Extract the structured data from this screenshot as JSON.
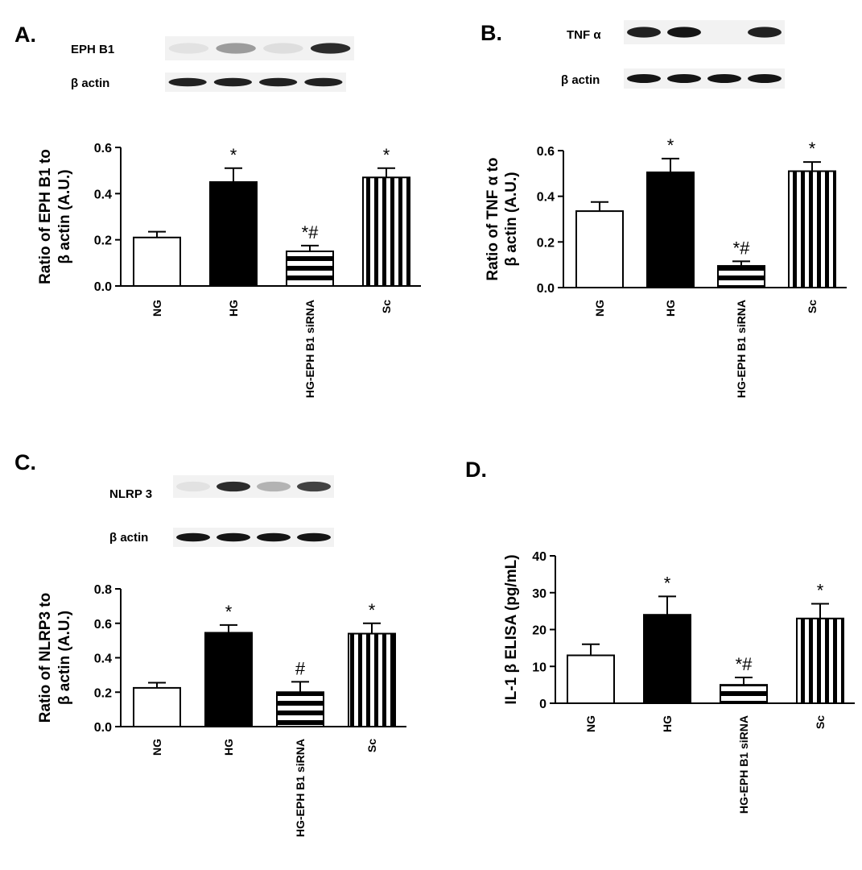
{
  "chart_data": [
    {
      "panel": "A.",
      "type": "bar",
      "blot_labels": [
        "EPH B1",
        "β actin"
      ],
      "ylabel": [
        "Ratio of EPH B1 to",
        "β actin (A.U.)"
      ],
      "categories": [
        "NG",
        "HG",
        "HG-EPH B1 siRNA",
        "Sc"
      ],
      "values": [
        0.21,
        0.45,
        0.15,
        0.47
      ],
      "errors": [
        0.025,
        0.06,
        0.025,
        0.04
      ],
      "annotations": [
        "",
        "*",
        "*#",
        "*"
      ],
      "ylim": [
        0,
        0.6
      ],
      "yticks": [
        "0.0",
        "0.2",
        "0.4",
        "0.6"
      ],
      "fills": [
        "open",
        "solid",
        "horizontal-stripes",
        "vertical-stripes"
      ]
    },
    {
      "panel": "B.",
      "type": "bar",
      "blot_labels": [
        "TNF α",
        "β actin"
      ],
      "ylabel": [
        "Ratio of TNF α to",
        "β actin (A.U.)"
      ],
      "categories": [
        "NG",
        "HG",
        "HG-EPH B1 siRNA",
        "Sc"
      ],
      "values": [
        0.335,
        0.505,
        0.095,
        0.51
      ],
      "errors": [
        0.04,
        0.06,
        0.02,
        0.04
      ],
      "annotations": [
        "",
        "*",
        "*#",
        "*"
      ],
      "ylim": [
        0,
        0.6
      ],
      "yticks": [
        "0.0",
        "0.2",
        "0.4",
        "0.6"
      ],
      "fills": [
        "open",
        "solid",
        "horizontal-stripes",
        "vertical-stripes"
      ]
    },
    {
      "panel": "C.",
      "type": "bar",
      "blot_labels": [
        "NLRP 3",
        "β actin"
      ],
      "ylabel": [
        "Ratio of NLRP3 to",
        "β actin (A.U.)"
      ],
      "categories": [
        "NG",
        "HG",
        "HG-EPH B1 siRNA",
        "Sc"
      ],
      "values": [
        0.225,
        0.545,
        0.2,
        0.54
      ],
      "errors": [
        0.03,
        0.045,
        0.06,
        0.06
      ],
      "annotations": [
        "",
        "*",
        "#",
        "*"
      ],
      "ylim": [
        0,
        0.8
      ],
      "yticks": [
        "0.0",
        "0.2",
        "0.4",
        "0.6",
        "0.8"
      ],
      "fills": [
        "open",
        "solid",
        "horizontal-stripes",
        "vertical-stripes"
      ]
    },
    {
      "panel": "D.",
      "type": "bar",
      "blot_labels": [],
      "ylabel": [
        "IL-1 β ELISA (pg/mL)"
      ],
      "categories": [
        "NG",
        "HG",
        "HG-EPH B1 siRNA",
        "Sc"
      ],
      "values": [
        13,
        24,
        5,
        23
      ],
      "errors": [
        3,
        5,
        2,
        4
      ],
      "annotations": [
        "",
        "*",
        "*#",
        "*"
      ],
      "ylim": [
        0,
        40
      ],
      "yticks": [
        "0",
        "10",
        "20",
        "30",
        "40"
      ],
      "fills": [
        "open",
        "solid",
        "horizontal-stripes",
        "vertical-stripes"
      ]
    }
  ]
}
